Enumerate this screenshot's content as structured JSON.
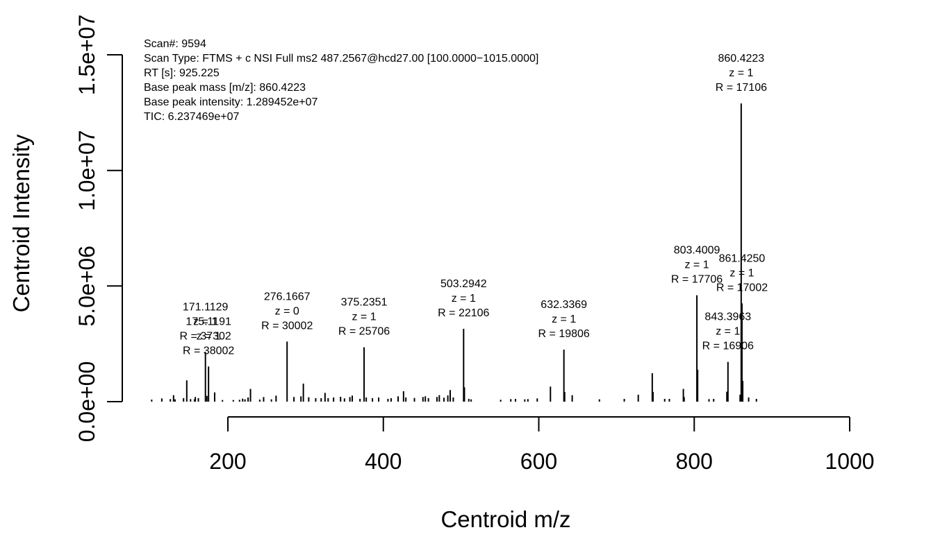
{
  "chart_data": {
    "type": "bar",
    "xlabel": "Centroid m/z",
    "ylabel": "Centroid Intensity",
    "xlim": [
      100,
      1000
    ],
    "ylim": [
      0,
      15000000
    ],
    "x_ticks": [
      "200",
      "400",
      "600",
      "800",
      "1000"
    ],
    "y_ticks": [
      "0.0e+00",
      "5.0e+06",
      "1.0e+07",
      "1.5e+07"
    ],
    "info": {
      "scan_line": "Scan#:  9594",
      "scan_type_line": "Scan Type:  FTMS + c NSI Full ms2 487.2567@hcd27.00 [100.0000−1015.0000]",
      "rt_line": "RT [s]:  925.225",
      "base_peak_mass_line": "Base peak mass [m/z]:  860.4223",
      "base_peak_intensity_line": "Base peak intensity:  1.289452e+07",
      "tic_line": "TIC:  6.237469e+07"
    },
    "peaks": [
      {
        "mz": 102.0,
        "intensity": 90000
      },
      {
        "mz": 115.0,
        "intensity": 140000
      },
      {
        "mz": 126.0,
        "intensity": 110000
      },
      {
        "mz": 130.1,
        "intensity": 280000
      },
      {
        "mz": 132.0,
        "intensity": 100000
      },
      {
        "mz": 143.0,
        "intensity": 150000
      },
      {
        "mz": 147.1,
        "intensity": 920000
      },
      {
        "mz": 152.0,
        "intensity": 110000
      },
      {
        "mz": 157.0,
        "intensity": 100000
      },
      {
        "mz": 158.1,
        "intensity": 200000
      },
      {
        "mz": 162.0,
        "intensity": 150000
      },
      {
        "mz": 171.1129,
        "intensity": 2150000
      },
      {
        "mz": 175.1191,
        "intensity": 1520000
      },
      {
        "mz": 173.0,
        "intensity": 250000
      },
      {
        "mz": 183.0,
        "intensity": 400000
      },
      {
        "mz": 193.0,
        "intensity": 70000
      },
      {
        "mz": 207.0,
        "intensity": 70000
      },
      {
        "mz": 215.0,
        "intensity": 80000
      },
      {
        "mz": 219.0,
        "intensity": 130000
      },
      {
        "mz": 222.0,
        "intensity": 100000
      },
      {
        "mz": 226.0,
        "intensity": 180000
      },
      {
        "mz": 229.1,
        "intensity": 550000
      },
      {
        "mz": 241.0,
        "intensity": 90000
      },
      {
        "mz": 246.0,
        "intensity": 200000
      },
      {
        "mz": 256.0,
        "intensity": 100000
      },
      {
        "mz": 262.0,
        "intensity": 260000
      },
      {
        "mz": 276.1667,
        "intensity": 2600000
      },
      {
        "mz": 285.0,
        "intensity": 200000
      },
      {
        "mz": 294.0,
        "intensity": 230000
      },
      {
        "mz": 297.1,
        "intensity": 780000
      },
      {
        "mz": 304.0,
        "intensity": 190000
      },
      {
        "mz": 313.0,
        "intensity": 150000
      },
      {
        "mz": 320.0,
        "intensity": 150000
      },
      {
        "mz": 325.0,
        "intensity": 380000
      },
      {
        "mz": 329.0,
        "intensity": 150000
      },
      {
        "mz": 336.0,
        "intensity": 180000
      },
      {
        "mz": 345.0,
        "intensity": 210000
      },
      {
        "mz": 350.0,
        "intensity": 140000
      },
      {
        "mz": 357.0,
        "intensity": 200000
      },
      {
        "mz": 360.0,
        "intensity": 260000
      },
      {
        "mz": 370.0,
        "intensity": 120000
      },
      {
        "mz": 375.2351,
        "intensity": 2350000
      },
      {
        "mz": 378.0,
        "intensity": 180000
      },
      {
        "mz": 386.0,
        "intensity": 150000
      },
      {
        "mz": 394.0,
        "intensity": 180000
      },
      {
        "mz": 406.0,
        "intensity": 120000
      },
      {
        "mz": 410.0,
        "intensity": 150000
      },
      {
        "mz": 419.0,
        "intensity": 230000
      },
      {
        "mz": 426.0,
        "intensity": 450000
      },
      {
        "mz": 429.0,
        "intensity": 180000
      },
      {
        "mz": 440.0,
        "intensity": 160000
      },
      {
        "mz": 451.0,
        "intensity": 200000
      },
      {
        "mz": 454.0,
        "intensity": 230000
      },
      {
        "mz": 458.0,
        "intensity": 150000
      },
      {
        "mz": 469.0,
        "intensity": 200000
      },
      {
        "mz": 472.0,
        "intensity": 280000
      },
      {
        "mz": 478.0,
        "intensity": 170000
      },
      {
        "mz": 483.0,
        "intensity": 270000
      },
      {
        "mz": 486.0,
        "intensity": 500000
      },
      {
        "mz": 490.0,
        "intensity": 180000
      },
      {
        "mz": 503.2942,
        "intensity": 3150000
      },
      {
        "mz": 504.3,
        "intensity": 620000
      },
      {
        "mz": 510.0,
        "intensity": 120000
      },
      {
        "mz": 513.0,
        "intensity": 100000
      },
      {
        "mz": 551.0,
        "intensity": 80000
      },
      {
        "mz": 564.0,
        "intensity": 110000
      },
      {
        "mz": 570.0,
        "intensity": 120000
      },
      {
        "mz": 582.0,
        "intensity": 100000
      },
      {
        "mz": 586.0,
        "intensity": 110000
      },
      {
        "mz": 598.0,
        "intensity": 140000
      },
      {
        "mz": 615.0,
        "intensity": 650000
      },
      {
        "mz": 632.3369,
        "intensity": 2250000
      },
      {
        "mz": 633.3,
        "intensity": 420000
      },
      {
        "mz": 643.0,
        "intensity": 280000
      },
      {
        "mz": 678.0,
        "intensity": 100000
      },
      {
        "mz": 710.0,
        "intensity": 120000
      },
      {
        "mz": 728.0,
        "intensity": 300000
      },
      {
        "mz": 746.0,
        "intensity": 1230000
      },
      {
        "mz": 747.0,
        "intensity": 420000
      },
      {
        "mz": 762.0,
        "intensity": 120000
      },
      {
        "mz": 768.0,
        "intensity": 120000
      },
      {
        "mz": 786.0,
        "intensity": 550000
      },
      {
        "mz": 787.0,
        "intensity": 200000
      },
      {
        "mz": 803.4009,
        "intensity": 4600000
      },
      {
        "mz": 804.4,
        "intensity": 1380000
      },
      {
        "mz": 819.0,
        "intensity": 110000
      },
      {
        "mz": 825.0,
        "intensity": 120000
      },
      {
        "mz": 842.0,
        "intensity": 430000
      },
      {
        "mz": 843.3963,
        "intensity": 1720000
      },
      {
        "mz": 859.0,
        "intensity": 300000
      },
      {
        "mz": 860.4223,
        "intensity": 12894520
      },
      {
        "mz": 861.425,
        "intensity": 4250000
      },
      {
        "mz": 862.4,
        "intensity": 900000
      },
      {
        "mz": 870.0,
        "intensity": 180000
      },
      {
        "mz": 880.0,
        "intensity": 120000
      }
    ],
    "annotations": [
      {
        "mz": 171.1129,
        "intensity": 2150000,
        "label": "171.1129",
        "z": "z =  1",
        "r": "R =  37302"
      },
      {
        "mz": 175.1191,
        "intensity": 1520000,
        "label": "175.1191",
        "z": "z =  1",
        "r": "R =  38002"
      },
      {
        "mz": 276.1667,
        "intensity": 2600000,
        "label": "276.1667",
        "z": "z =  0",
        "r": "R =  30002"
      },
      {
        "mz": 375.2351,
        "intensity": 2350000,
        "label": "375.2351",
        "z": "z =  1",
        "r": "R =  25706"
      },
      {
        "mz": 503.2942,
        "intensity": 3150000,
        "label": "503.2942",
        "z": "z =  1",
        "r": "R =  22106"
      },
      {
        "mz": 632.3369,
        "intensity": 2250000,
        "label": "632.3369",
        "z": "z =  1",
        "r": "R =  19806"
      },
      {
        "mz": 803.4009,
        "intensity": 4600000,
        "label": "803.4009",
        "z": "z =  1",
        "r": "R =  17706"
      },
      {
        "mz": 843.3963,
        "intensity": 1720000,
        "label": "843.3963",
        "z": "z =  1",
        "r": "R =  16906"
      },
      {
        "mz": 860.4223,
        "intensity": 12894520,
        "label": "860.4223",
        "z": "z =  1",
        "r": "R =  17106"
      },
      {
        "mz": 861.425,
        "intensity": 4250000,
        "label": "861.4250",
        "z": "z =  1",
        "r": "R =  17002"
      }
    ]
  }
}
